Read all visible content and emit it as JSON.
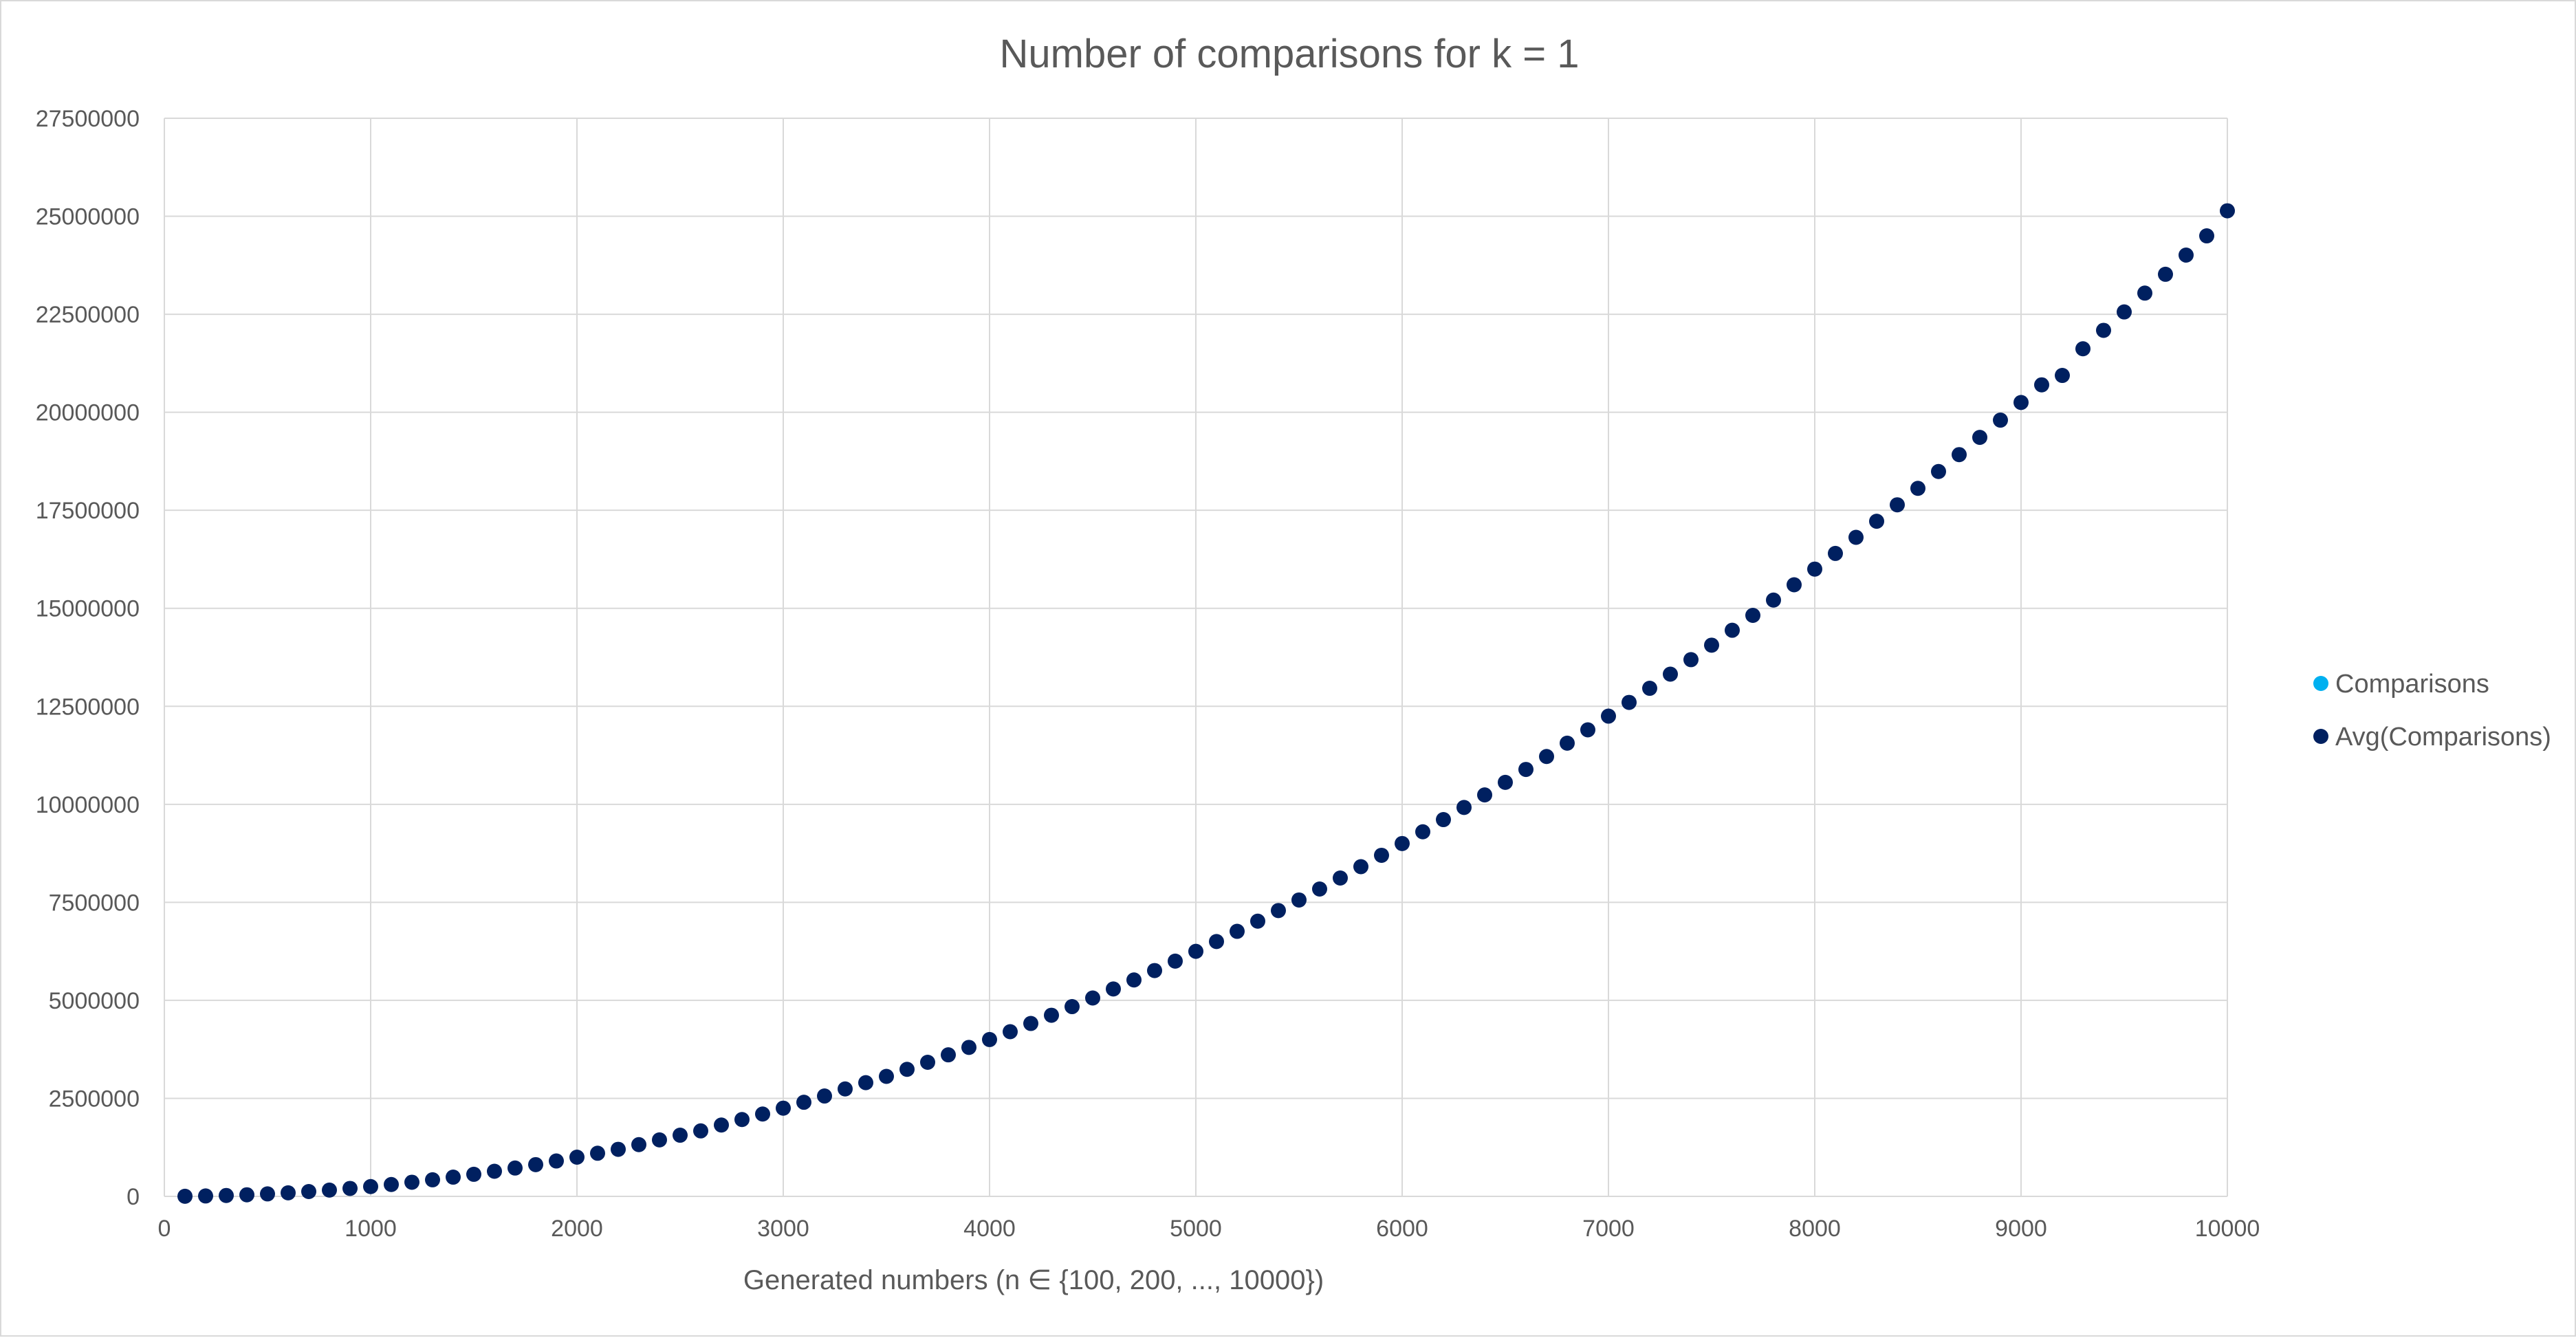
{
  "chart_data": {
    "type": "scatter",
    "title": "Number of comparisons for k = 1",
    "xlabel": "Generated numbers (n ∈ {100, 200, ..., 10000})",
    "ylabel": "",
    "xlim": [
      0,
      10000
    ],
    "ylim": [
      0,
      27500000
    ],
    "x_ticks": [
      "0",
      "1000",
      "2000",
      "3000",
      "4000",
      "5000",
      "6000",
      "7000",
      "8000",
      "9000",
      "10000"
    ],
    "y_ticks": [
      "0",
      "2500000",
      "5000000",
      "7500000",
      "10000000",
      "12500000",
      "15000000",
      "17500000",
      "20000000",
      "22500000",
      "25000000",
      "27500000"
    ],
    "grid": true,
    "legend_position": "right",
    "series": [
      {
        "name": "Comparisons",
        "color": "#00b0f0",
        "x": [],
        "y": []
      },
      {
        "name": "Avg(Comparisons)",
        "color": "#002060",
        "x": [
          100,
          200,
          300,
          400,
          500,
          600,
          700,
          800,
          900,
          1000,
          1100,
          1200,
          1300,
          1400,
          1500,
          1600,
          1700,
          1800,
          1900,
          2000,
          2100,
          2200,
          2300,
          2400,
          2500,
          2600,
          2700,
          2800,
          2900,
          3000,
          3100,
          3200,
          3300,
          3400,
          3500,
          3600,
          3700,
          3800,
          3900,
          4000,
          4100,
          4200,
          4300,
          4400,
          4500,
          4600,
          4700,
          4800,
          4900,
          5000,
          5100,
          5200,
          5300,
          5400,
          5500,
          5600,
          5700,
          5800,
          5900,
          6000,
          6100,
          6200,
          6300,
          6400,
          6500,
          6600,
          6700,
          6800,
          6900,
          7000,
          7100,
          7200,
          7300,
          7400,
          7500,
          7600,
          7700,
          7800,
          7900,
          8000,
          8100,
          8200,
          8300,
          8400,
          8500,
          8600,
          8700,
          8800,
          8900,
          9000,
          9100,
          9200,
          9300,
          9400,
          9500,
          9600,
          9700,
          9800,
          9900,
          10000
        ],
        "y": [
          2500,
          10000,
          22500,
          40000,
          62500,
          90000,
          122500,
          160000,
          202500,
          250000,
          302500,
          360000,
          422500,
          490000,
          562500,
          640000,
          722500,
          810000,
          902500,
          1000000,
          1100000,
          1200000,
          1320000,
          1440000,
          1560000,
          1670000,
          1820000,
          1960000,
          2100000,
          2250000,
          2400000,
          2560000,
          2740000,
          2900000,
          3060000,
          3240000,
          3420000,
          3610000,
          3800000,
          4000000,
          4200000,
          4410000,
          4620000,
          4840000,
          5060000,
          5290000,
          5520000,
          5760000,
          6000000,
          6250000,
          6500000,
          6760000,
          7020000,
          7290000,
          7560000,
          7840000,
          8120000,
          8410000,
          8700000,
          9000000,
          9300000,
          9610000,
          9920000,
          10240000,
          10560000,
          10890000,
          11220000,
          11560000,
          11900000,
          12250000,
          12600000,
          12960000,
          13320000,
          13690000,
          14060000,
          14440000,
          14820000,
          15210000,
          15600000,
          16000000,
          16400000,
          16810000,
          17220000,
          17640000,
          18060000,
          18490000,
          18920000,
          19360000,
          19800000,
          20250000,
          20700000,
          20940000,
          21620000,
          22090000,
          22560000,
          23040000,
          23520000,
          24010000,
          24500000,
          25140000
        ]
      }
    ]
  }
}
